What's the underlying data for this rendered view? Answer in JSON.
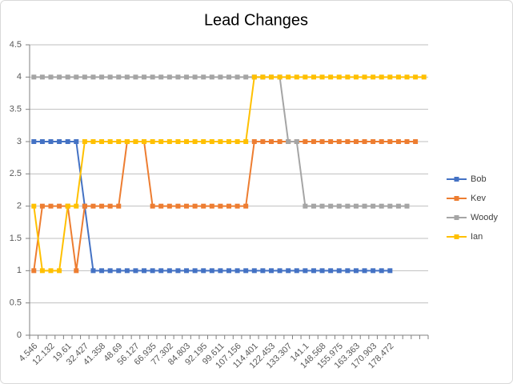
{
  "chart_data": {
    "type": "line",
    "title": "Lead Changes",
    "categories": [
      "4.546",
      null,
      "12.132",
      null,
      "19.61",
      null,
      "32.427",
      null,
      "41.358",
      null,
      "48.69",
      null,
      "56.127",
      null,
      "66.935",
      null,
      "77.302",
      null,
      "84.803",
      null,
      "92.195",
      null,
      "99.611",
      null,
      "107.156",
      null,
      "114.401",
      null,
      "122.453",
      null,
      "133.307",
      null,
      "141.1",
      null,
      "148.568",
      null,
      "155.975",
      null,
      "163.363",
      null,
      "170.903",
      null,
      "178.472",
      null,
      null,
      null,
      null
    ],
    "series": [
      {
        "name": "Bob",
        "color": "#4472c4",
        "values": [
          3,
          3,
          3,
          3,
          3,
          3,
          2,
          1,
          1,
          1,
          1,
          1,
          1,
          1,
          1,
          1,
          1,
          1,
          1,
          1,
          1,
          1,
          1,
          1,
          1,
          1,
          1,
          1,
          1,
          1,
          1,
          1,
          1,
          1,
          1,
          1,
          1,
          1,
          1,
          1,
          1,
          1,
          1,
          null,
          null,
          null,
          null
        ]
      },
      {
        "name": "Kev",
        "color": "#ed7d31",
        "values": [
          1,
          2,
          2,
          2,
          2,
          1,
          2,
          2,
          2,
          2,
          2,
          3,
          3,
          3,
          2,
          2,
          2,
          2,
          2,
          2,
          2,
          2,
          2,
          2,
          2,
          2,
          3,
          3,
          3,
          3,
          3,
          3,
          3,
          3,
          3,
          3,
          3,
          3,
          3,
          3,
          3,
          3,
          3,
          3,
          3,
          3,
          null
        ]
      },
      {
        "name": "Woody",
        "color": "#a5a5a5",
        "values": [
          4,
          4,
          4,
          4,
          4,
          4,
          4,
          4,
          4,
          4,
          4,
          4,
          4,
          4,
          4,
          4,
          4,
          4,
          4,
          4,
          4,
          4,
          4,
          4,
          4,
          4,
          4,
          4,
          4,
          4,
          3,
          3,
          2,
          2,
          2,
          2,
          2,
          2,
          2,
          2,
          2,
          2,
          2,
          2,
          2,
          null,
          null
        ]
      },
      {
        "name": "Ian",
        "color": "#ffc000",
        "values": [
          2,
          1,
          1,
          1,
          2,
          2,
          3,
          3,
          3,
          3,
          3,
          3,
          3,
          3,
          3,
          3,
          3,
          3,
          3,
          3,
          3,
          3,
          3,
          3,
          3,
          3,
          4,
          4,
          4,
          4,
          4,
          4,
          4,
          4,
          4,
          4,
          4,
          4,
          4,
          4,
          4,
          4,
          4,
          4,
          4,
          4,
          4
        ]
      }
    ],
    "ylim": [
      0,
      4.5
    ],
    "yticks": [
      0,
      0.5,
      1,
      1.5,
      2,
      2.5,
      3,
      3.5,
      4,
      4.5
    ],
    "grid": true,
    "legend": "right"
  }
}
